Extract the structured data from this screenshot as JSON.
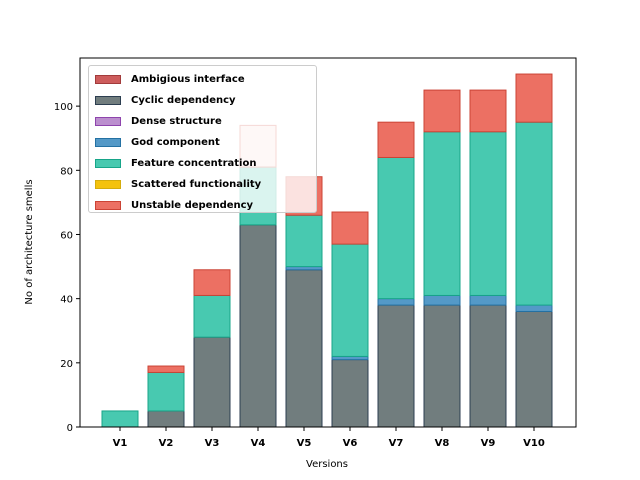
{
  "chart_data": {
    "type": "bar",
    "stacked": true,
    "xlabel": "Versions",
    "ylabel": "No of architecture smells",
    "ylim": [
      0,
      115
    ],
    "yticks": [
      0,
      20,
      40,
      60,
      80,
      100
    ],
    "grid": false,
    "legend_position": "top-left",
    "categories": [
      "V1",
      "V2",
      "V3",
      "V4",
      "V5",
      "V6",
      "V7",
      "V8",
      "V9",
      "V10"
    ],
    "series": [
      {
        "name": "Ambigious interface",
        "color": "#cd5c5c",
        "edge": "#a23b3b",
        "values": [
          0,
          0,
          0,
          0,
          0,
          0,
          0,
          0,
          0,
          0
        ]
      },
      {
        "name": "Cyclic dependency",
        "color": "#717d7e",
        "edge": "#2c3e50",
        "values": [
          0,
          5,
          28,
          63,
          49,
          21,
          38,
          38,
          38,
          36
        ]
      },
      {
        "name": "Dense structure",
        "color": "#bb8fce",
        "edge": "#8e44ad",
        "values": [
          0,
          0,
          0,
          0,
          0,
          0,
          0,
          0,
          0,
          0
        ]
      },
      {
        "name": "God component",
        "color": "#5499c7",
        "edge": "#2471a3",
        "values": [
          0,
          0,
          0,
          0,
          1,
          1,
          2,
          3,
          3,
          2
        ]
      },
      {
        "name": "Feature concentration",
        "color": "#48c9b0",
        "edge": "#17a589",
        "values": [
          5,
          12,
          13,
          18,
          16,
          35,
          44,
          51,
          51,
          57
        ]
      },
      {
        "name": "Scattered functionality",
        "color": "#f4c20d",
        "edge": "#d4ac0d",
        "values": [
          0,
          0,
          0,
          0,
          0,
          0,
          0,
          0,
          0,
          0
        ]
      },
      {
        "name": "Unstable dependency",
        "color": "#ec7063",
        "edge": "#cb4335",
        "values": [
          0,
          2,
          8,
          13,
          12,
          10,
          11,
          13,
          13,
          15
        ]
      }
    ]
  }
}
